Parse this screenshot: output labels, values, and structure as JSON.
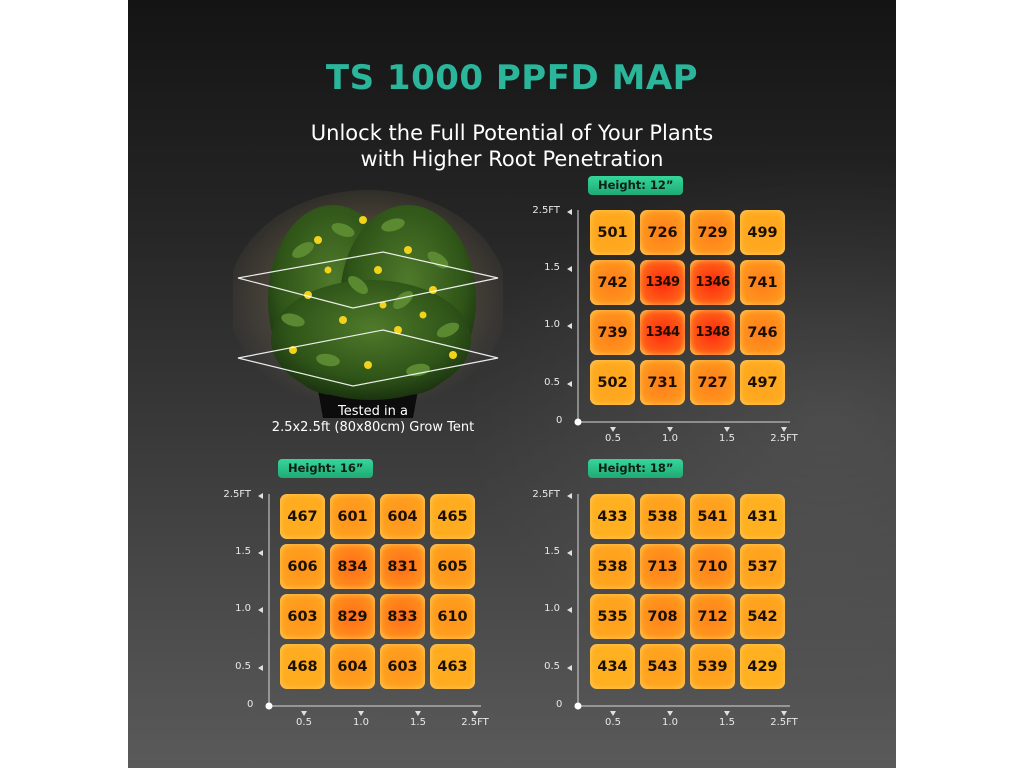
{
  "title": "TS 1000 PPFD MAP",
  "subtitle_line1": "Unlock the Full Potential of Your Plants",
  "subtitle_line2": "with Higher Root Penetration",
  "caption_line1": "Tested in a",
  "caption_line2": "2.5x2.5ft (80x80cm) Grow Tent",
  "colors": {
    "title": "#2bb59a",
    "badge": "#28c487",
    "cell_low": "#ffb020",
    "cell_high": "#ff2a10"
  },
  "chart_data": [
    {
      "type": "heatmap",
      "title": "Height: 12”",
      "x_ticks": [
        "0.5",
        "1.0",
        "1.5",
        "2.5FT"
      ],
      "y_ticks": [
        "2.5FT",
        "1.5",
        "1.0",
        "0.5"
      ],
      "origin": "0",
      "grid": [
        [
          501,
          726,
          729,
          499
        ],
        [
          742,
          1349,
          1346,
          741
        ],
        [
          739,
          1344,
          1348,
          746
        ],
        [
          502,
          731,
          727,
          497
        ]
      ]
    },
    {
      "type": "heatmap",
      "title": "Height: 16”",
      "x_ticks": [
        "0.5",
        "1.0",
        "1.5",
        "2.5FT"
      ],
      "y_ticks": [
        "2.5FT",
        "1.5",
        "1.0",
        "0.5"
      ],
      "origin": "0",
      "grid": [
        [
          467,
          601,
          604,
          465
        ],
        [
          606,
          834,
          831,
          605
        ],
        [
          603,
          829,
          833,
          610
        ],
        [
          468,
          604,
          603,
          463
        ]
      ]
    },
    {
      "type": "heatmap",
      "title": "Height: 18”",
      "x_ticks": [
        "0.5",
        "1.0",
        "1.5",
        "2.5FT"
      ],
      "y_ticks": [
        "2.5FT",
        "1.5",
        "1.0",
        "0.5"
      ],
      "origin": "0",
      "grid": [
        [
          433,
          538,
          541,
          431
        ],
        [
          538,
          713,
          710,
          537
        ],
        [
          535,
          708,
          712,
          542
        ],
        [
          434,
          543,
          539,
          429
        ]
      ]
    }
  ]
}
